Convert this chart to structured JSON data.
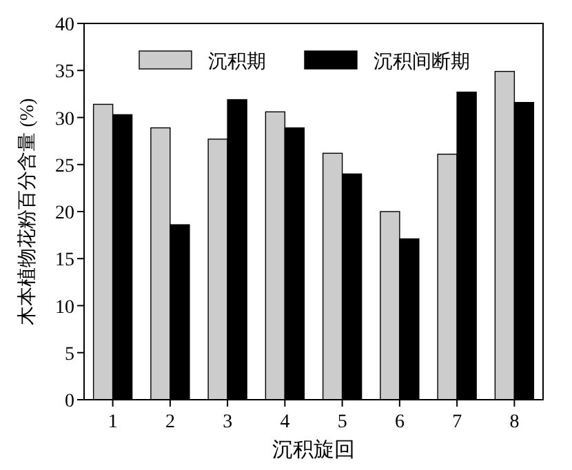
{
  "chart_data": {
    "type": "bar",
    "xlabel": "沉积旋回",
    "ylabel": "木本植物花粉百分含量 (%)",
    "categories": [
      "1",
      "2",
      "3",
      "4",
      "5",
      "6",
      "7",
      "8"
    ],
    "series": [
      {
        "name": "沉积期",
        "color": "#cccccc",
        "values": [
          31.4,
          28.9,
          27.7,
          30.6,
          26.2,
          20.0,
          26.1,
          34.9
        ]
      },
      {
        "name": "沉积间断期",
        "color": "#000000",
        "values": [
          30.3,
          18.6,
          31.9,
          28.9,
          24.0,
          17.1,
          32.7,
          31.6
        ]
      }
    ],
    "ylim": [
      0,
      40
    ],
    "yticks": [
      0,
      5,
      10,
      15,
      20,
      25,
      30,
      35,
      40
    ],
    "legend": "top",
    "grid": false
  }
}
